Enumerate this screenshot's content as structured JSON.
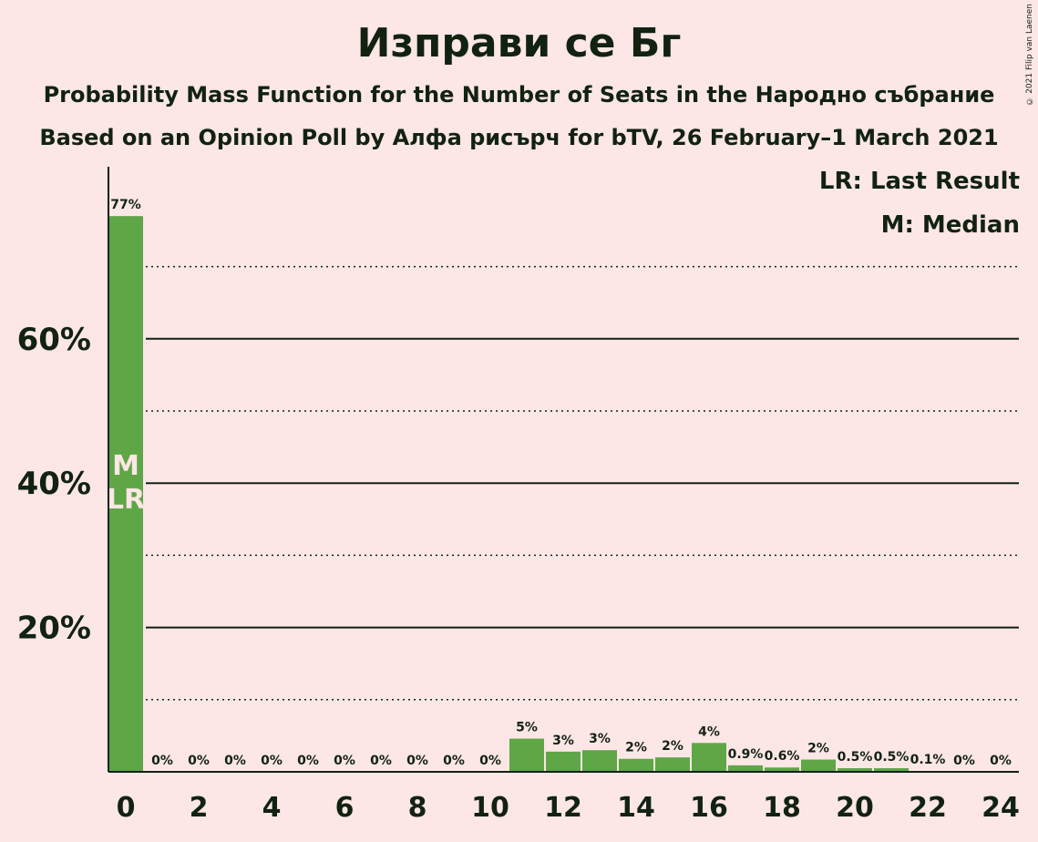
{
  "title": "Изправи се Бг",
  "subtitle": "Probability Mass Function for the Number of Seats in the Народно събрание",
  "subtitle2": "Based on an Opinion Poll by Алфа рисърч for bTV, 26 February–1 March 2021",
  "copyright": "© 2021 Filip van Laenen",
  "legend": {
    "last_result": "LR: Last Result",
    "median": "M: Median"
  },
  "colors": {
    "background": "#fde6e6",
    "bar": "#5ea646",
    "text": "#112211"
  },
  "chart_data": {
    "type": "bar",
    "x": [
      0,
      1,
      2,
      3,
      4,
      5,
      6,
      7,
      8,
      9,
      10,
      11,
      12,
      13,
      14,
      15,
      16,
      17,
      18,
      19,
      20,
      21,
      22,
      23,
      24
    ],
    "values": [
      77.0,
      0,
      0,
      0,
      0,
      0,
      0,
      0,
      0,
      0,
      0,
      4.6,
      2.8,
      3.0,
      1.8,
      2.0,
      4.0,
      0.9,
      0.6,
      1.7,
      0.5,
      0.5,
      0.1,
      0,
      0
    ],
    "labels": [
      "77%",
      "0%",
      "0%",
      "0%",
      "0%",
      "0%",
      "0%",
      "0%",
      "0%",
      "0%",
      "0%",
      "5%",
      "3%",
      "3%",
      "2%",
      "2%",
      "4%",
      "0.9%",
      "0.6%",
      "2%",
      "0.5%",
      "0.5%",
      "0.1%",
      "0%",
      "0%"
    ],
    "xticks": [
      "0",
      "2",
      "4",
      "6",
      "8",
      "10",
      "12",
      "14",
      "16",
      "18",
      "20",
      "22",
      "24"
    ],
    "yticks": [
      "20%",
      "40%",
      "60%"
    ],
    "ylim": [
      0,
      84
    ],
    "grid_major": [
      20,
      40,
      60
    ],
    "grid_minor": [
      10,
      30,
      50,
      70
    ],
    "median_seat": 0,
    "median_label": "M",
    "last_result_seat": 0,
    "last_result_label": "LR"
  }
}
